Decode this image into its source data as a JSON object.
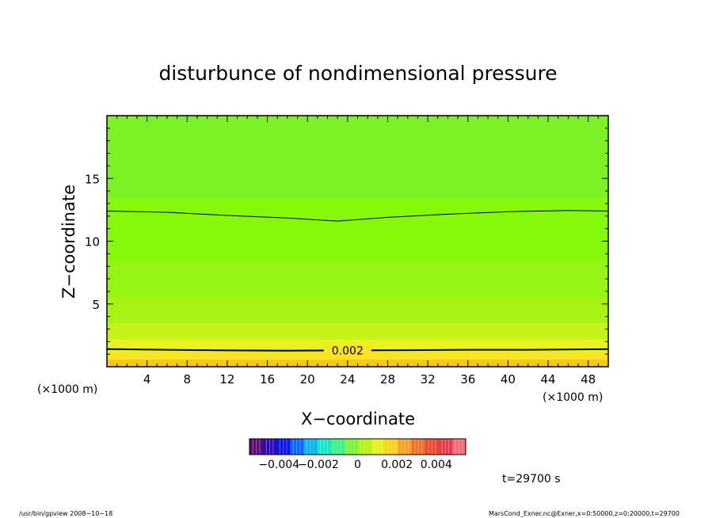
{
  "chart_data": {
    "type": "heatmap",
    "title": "disturbunce of nondimensional pressure",
    "xlabel": "X−coordinate",
    "ylabel": "Z−coordinate",
    "x_unit_left": "(×1000 m)",
    "x_unit_right": "(×1000 m)",
    "xlim": [
      0,
      50
    ],
    "ylim": [
      0,
      20
    ],
    "x_ticks": [
      4,
      8,
      12,
      16,
      20,
      24,
      28,
      32,
      36,
      40,
      44,
      48
    ],
    "y_ticks": [
      5,
      10,
      15
    ],
    "x_minor_step": 1,
    "y_minor_step": 1,
    "grid": false,
    "fill_levels": [
      {
        "z": [
          0,
          0.6
        ],
        "color": "#f4c81c"
      },
      {
        "z": [
          0.6,
          1.2
        ],
        "color": "#f8e424"
      },
      {
        "z": [
          1.2,
          2.2
        ],
        "color": "#e8f21e"
      },
      {
        "z": [
          2.2,
          3.5
        ],
        "color": "#c4f21a"
      },
      {
        "z": [
          3.5,
          5.5
        ],
        "color": "#a8f216"
      },
      {
        "z": [
          5.5,
          8.5
        ],
        "color": "#94f412"
      },
      {
        "z": [
          8.5,
          13.5
        ],
        "color": "#86f80a"
      },
      {
        "z": [
          13.5,
          20
        ],
        "color": "#7cf226"
      }
    ],
    "contours": [
      {
        "label": "0.002",
        "label_x": 24,
        "points": [
          [
            0,
            1.4
          ],
          [
            6,
            1.35
          ],
          [
            12,
            1.3
          ],
          [
            18,
            1.28
          ],
          [
            24,
            1.3
          ],
          [
            30,
            1.32
          ],
          [
            36,
            1.35
          ],
          [
            42,
            1.35
          ],
          [
            50,
            1.4
          ]
        ]
      },
      {
        "label": "",
        "points": [
          [
            0,
            12.4
          ],
          [
            6,
            12.3
          ],
          [
            12,
            12.05
          ],
          [
            18,
            11.85
          ],
          [
            23,
            11.6
          ],
          [
            28,
            11.9
          ],
          [
            34,
            12.15
          ],
          [
            40,
            12.35
          ],
          [
            46,
            12.45
          ],
          [
            50,
            12.4
          ]
        ]
      }
    ],
    "colorbar": {
      "range": [
        -0.0055,
        0.0055
      ],
      "tick_labels": [
        "−0.004",
        "−0.002",
        "0",
        "0.002",
        "0.004"
      ],
      "tick_values": [
        -0.004,
        -0.002,
        0,
        0.002,
        0.004
      ],
      "colors": [
        "#5a0a78",
        "#2a0ab4",
        "#0a14e6",
        "#0a64ff",
        "#0ab4f0",
        "#14e6c8",
        "#3cf08c",
        "#78f23c",
        "#b4f214",
        "#e6f018",
        "#f8d21e",
        "#f8a028",
        "#f06e2e",
        "#e84a2e",
        "#e63c4a",
        "#f06e78"
      ]
    }
  },
  "time_label": "t=29700 s",
  "footer": {
    "left": "/usr/bin/gpview   2008−10−18",
    "right": "MarsCond_Exner.nc@Exner,x=0:50000,z=0:20000,t=29700"
  }
}
